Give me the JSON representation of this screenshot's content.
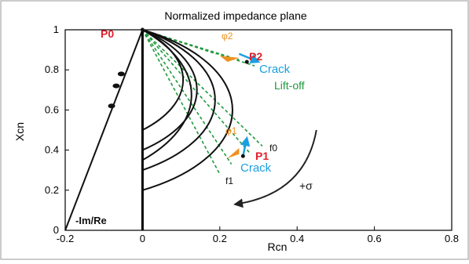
{
  "chart_data": {
    "type": "line",
    "title": "Normalized impedance plane",
    "xlabel": "Rcn",
    "ylabel": "Xcn",
    "xlim": [
      -0.2,
      0.8
    ],
    "ylim": [
      0,
      1
    ],
    "x_ticks": [
      "-0.2",
      "0",
      "0.2",
      "0.4",
      "0.6",
      "0.8"
    ],
    "y_ticks": [
      "0",
      "0.2",
      "0.4",
      "0.6",
      "0.8",
      "1"
    ],
    "grid": false,
    "series": [
      {
        "kind": "arc",
        "center": [
          0,
          0.65
        ],
        "radius": 0.35,
        "end_y": 0.5
      },
      {
        "kind": "arc",
        "center": [
          0,
          0.61
        ],
        "radius": 0.39,
        "end_y": 0.4
      },
      {
        "kind": "arc",
        "center": [
          0,
          0.58
        ],
        "radius": 0.42,
        "end_y": 0.3
      },
      {
        "kind": "arc",
        "center": [
          0,
          0.54
        ],
        "radius": 0.46,
        "end_y": 0.2
      },
      {
        "kind": "arc",
        "center": [
          0,
          0.52
        ],
        "radius": 0.48,
        "end_y": 0.35
      },
      {
        "kind": "line",
        "name": "-Im/Re",
        "x": [
          -0.2,
          0
        ],
        "y": [
          0,
          1
        ]
      },
      {
        "kind": "dots",
        "x": [
          -0.055,
          -0.068,
          -0.08
        ],
        "y": [
          0.78,
          0.72,
          0.62
        ]
      }
    ],
    "liftoff_lines": [
      {
        "x": [
          0,
          0.2
        ],
        "y": [
          1,
          0.28
        ]
      },
      {
        "x": [
          0,
          0.23
        ],
        "y": [
          1,
          0.33
        ]
      },
      {
        "x": [
          0,
          0.28
        ],
        "y": [
          1,
          0.38
        ]
      },
      {
        "x": [
          0,
          0.31
        ],
        "y": [
          1,
          0.42
        ]
      },
      {
        "x": [
          0,
          0.19
        ],
        "y": [
          1,
          0.88
        ]
      },
      {
        "x": [
          0,
          0.25
        ],
        "y": [
          1,
          0.85
        ]
      },
      {
        "x": [
          0,
          0.29
        ],
        "y": [
          1,
          0.82
        ]
      }
    ],
    "points": [
      {
        "label": "P",
        "sub": "0",
        "x": 0,
        "y": 1
      },
      {
        "label": "P",
        "sub": "1",
        "x": 0.26,
        "y": 0.37
      },
      {
        "label": "P",
        "sub": "2",
        "x": 0.27,
        "y": 0.84
      }
    ],
    "crack_vectors": [
      {
        "x": [
          0.25,
          0.3
        ],
        "y": [
          0.88,
          0.84
        ]
      },
      {
        "x": [
          0.26,
          0.27
        ],
        "y": [
          0.37,
          0.46
        ]
      }
    ],
    "phase_markers": [
      {
        "x": [
          0.2,
          0.25,
          0.22
        ],
        "y": [
          0.87,
          0.86,
          0.84
        ]
      },
      {
        "x": [
          0.22,
          0.25,
          0.25
        ],
        "y": [
          0.36,
          0.38,
          0.41
        ]
      }
    ],
    "sigma_arrow": {
      "x": [
        0.45,
        0.24
      ],
      "y": [
        0.5,
        0.13
      ]
    },
    "annotations": {
      "p0": "P0",
      "p1": "P1",
      "p2": "P2",
      "phi1": "φ1",
      "phi2": "φ2",
      "crack_top": "Crack",
      "crack_bottom": "Crack",
      "liftoff": "Lift-off",
      "f0": "f0",
      "f1": "f1",
      "sigma": "+σ",
      "line_label": "-Im/Re"
    },
    "colors": {
      "axis": "#000000",
      "curves": "#111111",
      "liftoff": "#1f9a3c",
      "crack": "#1aa0e0",
      "point_label": "#e0202a",
      "phi": "#f0901e"
    }
  }
}
